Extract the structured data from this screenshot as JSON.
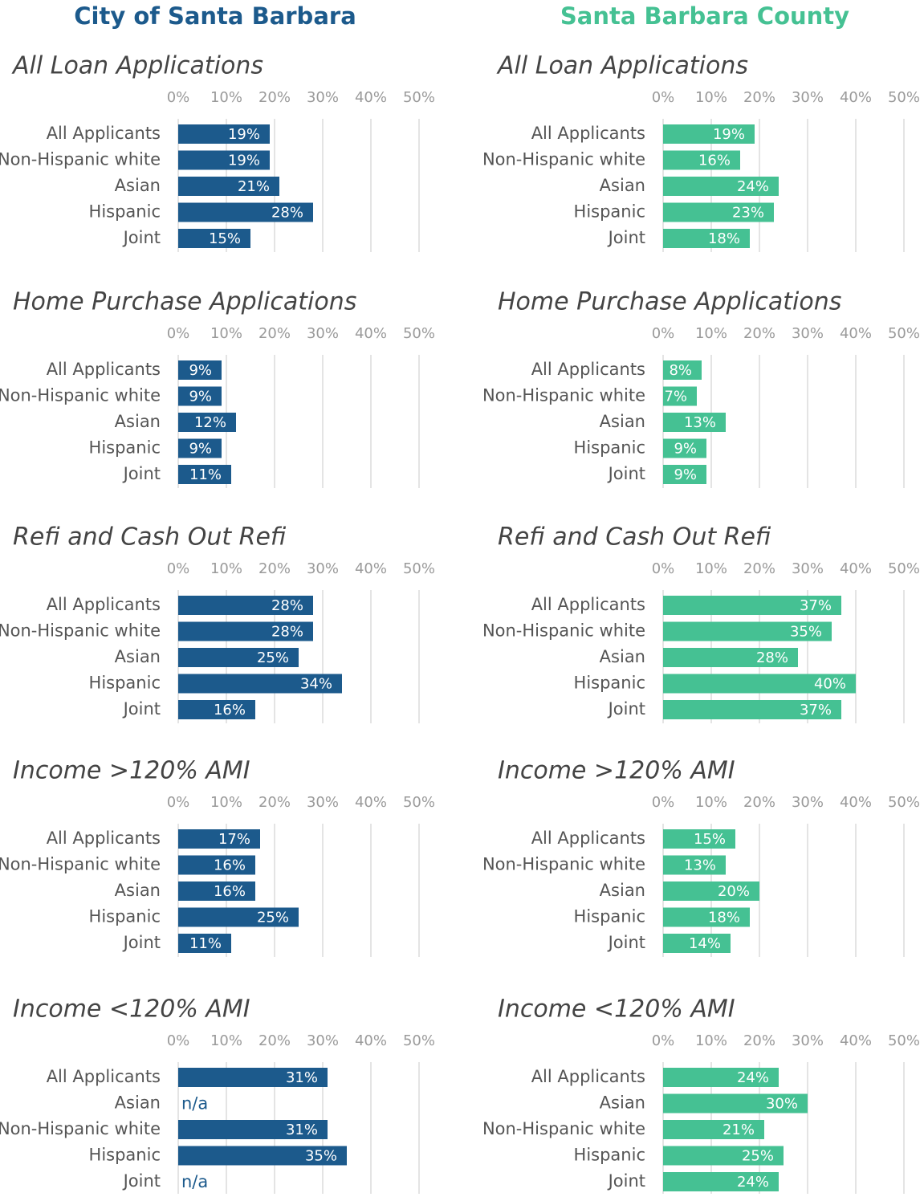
{
  "headers": [
    "City of Santa Barbara",
    "Santa Barbara County"
  ],
  "chart_data": [
    {
      "type": "bar",
      "title": "All Loan Applications",
      "categories": [
        "All Applicants",
        "Non-Hispanic white",
        "Asian",
        "Hispanic",
        "Joint"
      ],
      "values": [
        19,
        19,
        21,
        28,
        15
      ],
      "value_labels": [
        "19%",
        "19%",
        "21%",
        "28%",
        "15%"
      ],
      "color": "#1c5a8c",
      "xlim": [
        0,
        50
      ],
      "xticks": [
        {
          "value": 0,
          "label": "0%"
        },
        {
          "value": 10,
          "label": "10%"
        },
        {
          "value": 20,
          "label": "20%"
        },
        {
          "value": 30,
          "label": "30%"
        },
        {
          "value": 40,
          "label": "40%"
        },
        {
          "value": 50,
          "label": "50%"
        }
      ],
      "grid": true
    },
    {
      "type": "bar",
      "title": "All Loan Applications",
      "categories": [
        "All Applicants",
        "Non-Hispanic white",
        "Asian",
        "Hispanic",
        "Joint"
      ],
      "values": [
        19,
        16,
        24,
        23,
        18
      ],
      "value_labels": [
        "19%",
        "16%",
        "24%",
        "23%",
        "18%"
      ],
      "color": "#45c193",
      "xlim": [
        0,
        50
      ],
      "xticks": [
        {
          "value": 0,
          "label": "0%"
        },
        {
          "value": 10,
          "label": "10%"
        },
        {
          "value": 20,
          "label": "20%"
        },
        {
          "value": 30,
          "label": "30%"
        },
        {
          "value": 40,
          "label": "40%"
        },
        {
          "value": 50,
          "label": "50%"
        }
      ],
      "grid": true
    },
    {
      "type": "bar",
      "title": "Home Purchase Applications",
      "categories": [
        "All Applicants",
        "Non-Hispanic white",
        "Asian",
        "Hispanic",
        "Joint"
      ],
      "values": [
        9,
        9,
        12,
        9,
        11
      ],
      "value_labels": [
        "9%",
        "9%",
        "12%",
        "9%",
        "11%"
      ],
      "color": "#1c5a8c",
      "xlim": [
        0,
        50
      ],
      "xticks": [
        {
          "value": 0,
          "label": "0%"
        },
        {
          "value": 10,
          "label": "10%"
        },
        {
          "value": 20,
          "label": "20%"
        },
        {
          "value": 30,
          "label": "30%"
        },
        {
          "value": 40,
          "label": "40%"
        },
        {
          "value": 50,
          "label": "50%"
        }
      ],
      "grid": true
    },
    {
      "type": "bar",
      "title": "Home Purchase Applications",
      "categories": [
        "All Applicants",
        "Non-Hispanic white",
        "Asian",
        "Hispanic",
        "Joint"
      ],
      "values": [
        8,
        7,
        13,
        9,
        9
      ],
      "value_labels": [
        "8%",
        "7%",
        "13%",
        "9%",
        "9%"
      ],
      "color": "#45c193",
      "xlim": [
        0,
        50
      ],
      "xticks": [
        {
          "value": 0,
          "label": "0%"
        },
        {
          "value": 10,
          "label": "10%"
        },
        {
          "value": 20,
          "label": "20%"
        },
        {
          "value": 30,
          "label": "30%"
        },
        {
          "value": 40,
          "label": "40%"
        },
        {
          "value": 50,
          "label": "50%"
        }
      ],
      "grid": true
    },
    {
      "type": "bar",
      "title": "Refi and Cash Out Refi",
      "categories": [
        "All Applicants",
        "Non-Hispanic white",
        "Asian",
        "Hispanic",
        "Joint"
      ],
      "values": [
        28,
        28,
        25,
        34,
        16
      ],
      "value_labels": [
        "28%",
        "28%",
        "25%",
        "34%",
        "16%"
      ],
      "color": "#1c5a8c",
      "xlim": [
        0,
        50
      ],
      "xticks": [
        {
          "value": 0,
          "label": "0%"
        },
        {
          "value": 10,
          "label": "10%"
        },
        {
          "value": 20,
          "label": "20%"
        },
        {
          "value": 30,
          "label": "30%"
        },
        {
          "value": 40,
          "label": "40%"
        },
        {
          "value": 50,
          "label": "50%"
        }
      ],
      "grid": true
    },
    {
      "type": "bar",
      "title": "Refi and Cash Out Refi",
      "categories": [
        "All Applicants",
        "Non-Hispanic white",
        "Asian",
        "Hispanic",
        "Joint"
      ],
      "values": [
        37,
        35,
        28,
        40,
        37
      ],
      "value_labels": [
        "37%",
        "35%",
        "28%",
        "40%",
        "37%"
      ],
      "color": "#45c193",
      "xlim": [
        0,
        50
      ],
      "xticks": [
        {
          "value": 0,
          "label": "0%"
        },
        {
          "value": 10,
          "label": "10%"
        },
        {
          "value": 20,
          "label": "20%"
        },
        {
          "value": 30,
          "label": "30%"
        },
        {
          "value": 40,
          "label": "40%"
        },
        {
          "value": 50,
          "label": "50%"
        }
      ],
      "grid": true
    },
    {
      "type": "bar",
      "title": "Income >120% AMI",
      "categories": [
        "All Applicants",
        "Non-Hispanic white",
        "Asian",
        "Hispanic",
        "Joint"
      ],
      "values": [
        17,
        16,
        16,
        25,
        11
      ],
      "value_labels": [
        "17%",
        "16%",
        "16%",
        "25%",
        "11%"
      ],
      "color": "#1c5a8c",
      "xlim": [
        0,
        50
      ],
      "xticks": [
        {
          "value": 0,
          "label": "0%"
        },
        {
          "value": 10,
          "label": "10%"
        },
        {
          "value": 20,
          "label": "20%"
        },
        {
          "value": 30,
          "label": "30%"
        },
        {
          "value": 40,
          "label": "40%"
        },
        {
          "value": 50,
          "label": "50%"
        }
      ],
      "grid": true
    },
    {
      "type": "bar",
      "title": "Income >120% AMI",
      "categories": [
        "All Applicants",
        "Non-Hispanic white",
        "Asian",
        "Hispanic",
        "Joint"
      ],
      "values": [
        15,
        13,
        20,
        18,
        14
      ],
      "value_labels": [
        "15%",
        "13%",
        "20%",
        "18%",
        "14%"
      ],
      "color": "#45c193",
      "xlim": [
        0,
        50
      ],
      "xticks": [
        {
          "value": 0,
          "label": "0%"
        },
        {
          "value": 10,
          "label": "10%"
        },
        {
          "value": 20,
          "label": "20%"
        },
        {
          "value": 30,
          "label": "30%"
        },
        {
          "value": 40,
          "label": "40%"
        },
        {
          "value": 50,
          "label": "50%"
        }
      ],
      "grid": true
    },
    {
      "type": "bar",
      "title": "Income <120% AMI",
      "categories": [
        "All Applicants",
        "Asian",
        "Non-Hispanic white",
        "Hispanic",
        "Joint"
      ],
      "values": [
        31,
        null,
        31,
        35,
        null
      ],
      "value_labels": [
        "31%",
        "n/a",
        "31%",
        "35%",
        "n/a"
      ],
      "color": "#1c5a8c",
      "xlim": [
        0,
        50
      ],
      "xticks": [
        {
          "value": 0,
          "label": "0%"
        },
        {
          "value": 10,
          "label": "10%"
        },
        {
          "value": 20,
          "label": "20%"
        },
        {
          "value": 30,
          "label": "30%"
        },
        {
          "value": 40,
          "label": "40%"
        },
        {
          "value": 50,
          "label": "50%"
        }
      ],
      "grid": true
    },
    {
      "type": "bar",
      "title": "Income <120% AMI",
      "categories": [
        "All Applicants",
        "Asian",
        "Non-Hispanic white",
        "Hispanic",
        "Joint"
      ],
      "values": [
        24,
        30,
        21,
        25,
        24
      ],
      "value_labels": [
        "24%",
        "30%",
        "21%",
        "25%",
        "24%"
      ],
      "color": "#45c193",
      "xlim": [
        0,
        50
      ],
      "xticks": [
        {
          "value": 0,
          "label": "0%"
        },
        {
          "value": 10,
          "label": "10%"
        },
        {
          "value": 20,
          "label": "20%"
        },
        {
          "value": 30,
          "label": "30%"
        },
        {
          "value": 40,
          "label": "40%"
        },
        {
          "value": 50,
          "label": "50%"
        }
      ],
      "grid": true
    }
  ]
}
